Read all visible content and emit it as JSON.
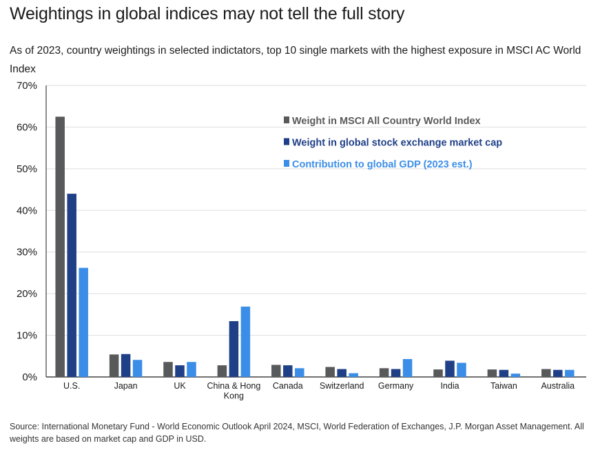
{
  "title": "Weightings in global indices may not tell the full story",
  "subtitle": "As of 2023, country weightings in selected indictators, top 10 single markets with the highest exposure in MSCI AC World Index",
  "source": "Source: International Monetary Fund - World Economic Outlook April 2024, MSCI, World Federation of Exchanges, J.P. Morgan Asset Management. All weights are based on market cap and GDP in USD.",
  "chart_data": {
    "type": "bar",
    "categories": [
      [
        "U.S."
      ],
      [
        "Japan"
      ],
      [
        "UK"
      ],
      [
        "China & Hong",
        "Kong"
      ],
      [
        "Canada"
      ],
      [
        "Switzerland"
      ],
      [
        "Germany"
      ],
      [
        "India"
      ],
      [
        "Taiwan"
      ],
      [
        "Australia"
      ]
    ],
    "series": [
      {
        "name": "Weight in MSCI All Country World Index",
        "color": "#58595b",
        "values": [
          62.5,
          5.4,
          3.6,
          2.8,
          2.9,
          2.4,
          2.1,
          1.8,
          1.8,
          1.9
        ]
      },
      {
        "name": "Weight in global stock exchange market cap",
        "color": "#1f3f87",
        "values": [
          44.0,
          5.5,
          2.8,
          13.4,
          2.8,
          1.9,
          1.9,
          3.9,
          1.7,
          1.7
        ]
      },
      {
        "name": "Contribution to global GDP (2023 est.)",
        "color": "#3b8ee8",
        "values": [
          26.2,
          4.1,
          3.6,
          16.9,
          2.1,
          0.9,
          4.3,
          3.4,
          0.8,
          1.7
        ]
      }
    ],
    "yticks": [
      "0%",
      "10%",
      "20%",
      "30%",
      "40%",
      "50%",
      "60%",
      "70%"
    ],
    "ylim": [
      0,
      70
    ],
    "grid": true,
    "legend_position": "top-right"
  }
}
